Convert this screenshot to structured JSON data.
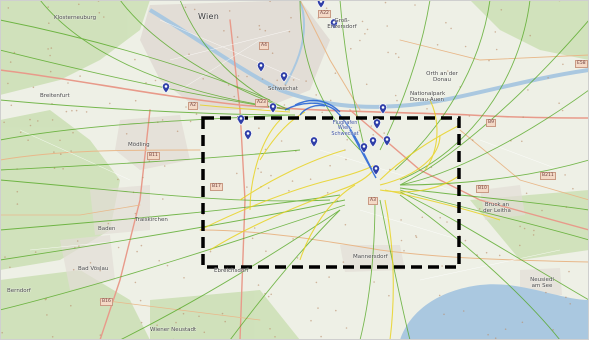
{
  "map": {
    "places": [
      {
        "id": "wien",
        "name": "Wien",
        "kind": "city"
      },
      {
        "id": "klosterneuburg",
        "name": "Klosterneuburg",
        "kind": "town"
      },
      {
        "id": "gross-enzersdorf",
        "name": "Groß-Enzersdorf",
        "kind": "town"
      },
      {
        "id": "breitenfurt",
        "name": "Breitenfurt",
        "kind": "town"
      },
      {
        "id": "schwechat",
        "name": "Schwechat",
        "kind": "town"
      },
      {
        "id": "orth",
        "name": "Orth an der Donau",
        "kind": "town"
      },
      {
        "id": "nationalpark",
        "name": "Nationalpark Donau-Auen",
        "kind": "park"
      },
      {
        "id": "airport",
        "name": "Flughafen Wien-Schwechat",
        "kind": "airport"
      },
      {
        "id": "moedling",
        "name": "Mödling",
        "kind": "town"
      },
      {
        "id": "traiskirchen",
        "name": "Traiskirchen",
        "kind": "town"
      },
      {
        "id": "baden",
        "name": "Baden",
        "kind": "town"
      },
      {
        "id": "bad-voeslau",
        "name": "Bad Vöslau",
        "kind": "town"
      },
      {
        "id": "berndorf",
        "name": "Berndorf",
        "kind": "town"
      },
      {
        "id": "ebreichsdorf",
        "name": "Ebreichsdorf",
        "kind": "town"
      },
      {
        "id": "mannersdorf",
        "name": "Mannersdorf",
        "kind": "town"
      },
      {
        "id": "bruck",
        "name": "Bruck an der Leitha",
        "kind": "town"
      },
      {
        "id": "neusiedl",
        "name": "Neusiedl am See",
        "kind": "town"
      },
      {
        "id": "wiener-neustadt",
        "name": "Wiener Neustadt",
        "kind": "town"
      }
    ],
    "road_shields": [
      "A4",
      "A22",
      "A23",
      "B9",
      "B10",
      "B11",
      "B16",
      "B17",
      "B211",
      "A2",
      "A3",
      "E58"
    ],
    "colors": {
      "background": "#eef0e6",
      "urban": "#e2ddd6",
      "forest": "#cbdfb4",
      "water": "#aac8e0",
      "track_green": "#4ea51c",
      "track_yellow": "#e8d21a",
      "track_blue": "#1f5fd6",
      "marker": "#2f3fa8",
      "highlight_box": "#000000"
    },
    "marker_icon": "map-pin-icon",
    "highlight_region": "dashed-rectangle"
  }
}
